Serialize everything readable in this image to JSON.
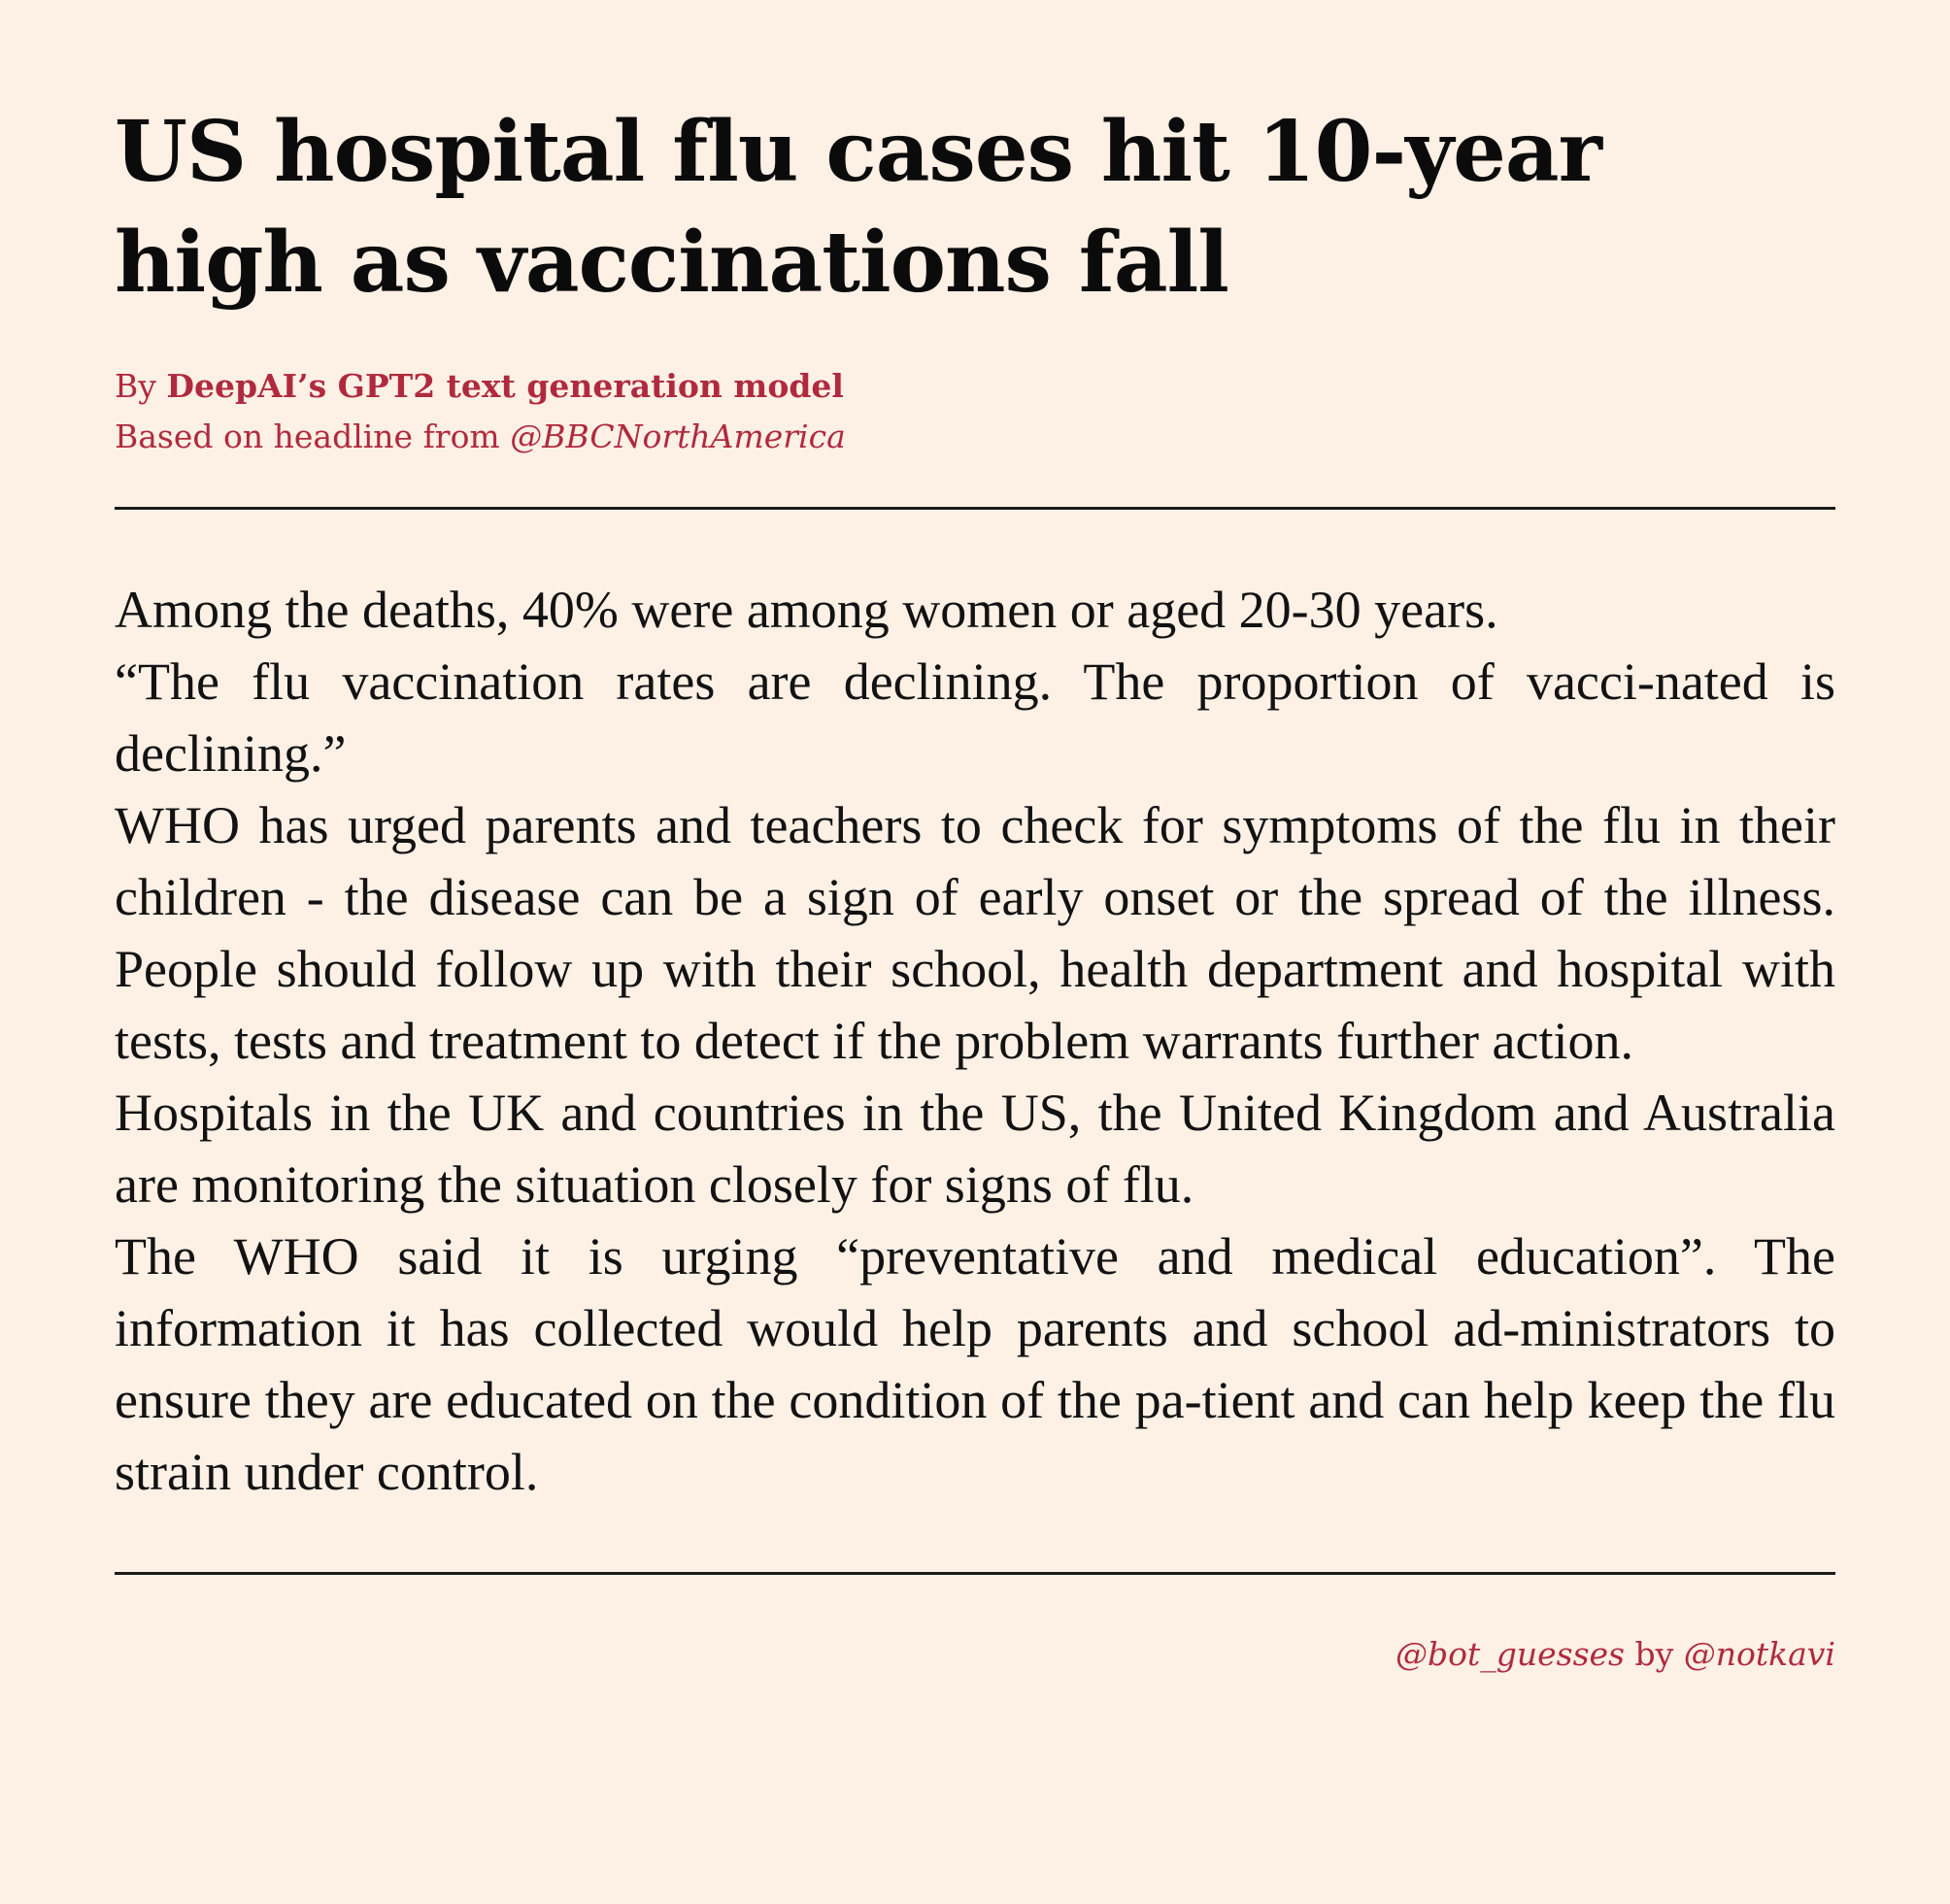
{
  "article": {
    "headline": "US hospital flu cases hit 10-year high as vaccinations fall",
    "byline_prefix": "By ",
    "byline_author": "DeepAI’s GPT2 text generation model",
    "source_prefix": "Based on headline from ",
    "source_handle": "@BBCNorthAmerica",
    "paragraphs": [
      "Among the deaths, 40% were among women or aged 20-30 years.",
      "“The flu vaccination rates are declining. The proportion of vacci-nated is declining.”",
      "WHO has urged parents and teachers to check for symptoms of the flu in their children - the disease can be a sign of early onset or the spread of the illness. People should follow up with their school, health department and hospital with tests, tests and treatment to detect if the problem warrants further action.",
      "Hospitals in the UK and countries in the US, the United Kingdom and Australia are monitoring the situation closely for signs of flu.",
      "The WHO said it is urging “preventative and medical education”. The information it has collected would help parents and school ad-ministrators to ensure they are educated on the condition of the pa-tient and can help keep the flu strain under control."
    ]
  },
  "footer": {
    "bot_handle": "@bot_guesses",
    "by_word": " by ",
    "author_handle": "@notkavi"
  },
  "colors": {
    "background": "#fdf0e5",
    "accent": "#b02a3e",
    "text": "#111111"
  }
}
